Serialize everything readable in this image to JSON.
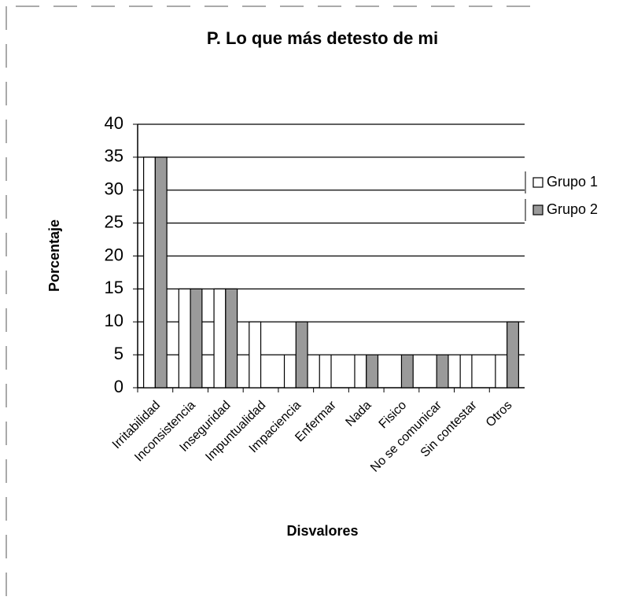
{
  "chart_data": {
    "type": "bar",
    "title": "P. Lo que más detesto de mi",
    "x_label": "Disvalores",
    "y_label": "Porcentaje",
    "categories": [
      "Irritabilidad",
      "Inconsistencia",
      "Inseguridad",
      "Impuntualidad",
      "Impaciencia",
      "Enfermar",
      "Nada",
      "Fisico",
      "No se comunicar",
      "Sin contestar",
      "Otros"
    ],
    "series": [
      {
        "name": "Grupo 1",
        "color": "#ffffff",
        "values": [
          35,
          15,
          15,
          10,
          5,
          5,
          5,
          0,
          0,
          5,
          5
        ]
      },
      {
        "name": "Grupo 2",
        "color": "#9a9a9a",
        "values": [
          35,
          15,
          15,
          0,
          10,
          0,
          5,
          5,
          5,
          0,
          10
        ]
      }
    ],
    "ylim": [
      0,
      40
    ],
    "yticks": [
      0,
      5,
      10,
      15,
      20,
      25,
      30,
      35,
      40
    ],
    "grid": true,
    "legend": "right"
  }
}
